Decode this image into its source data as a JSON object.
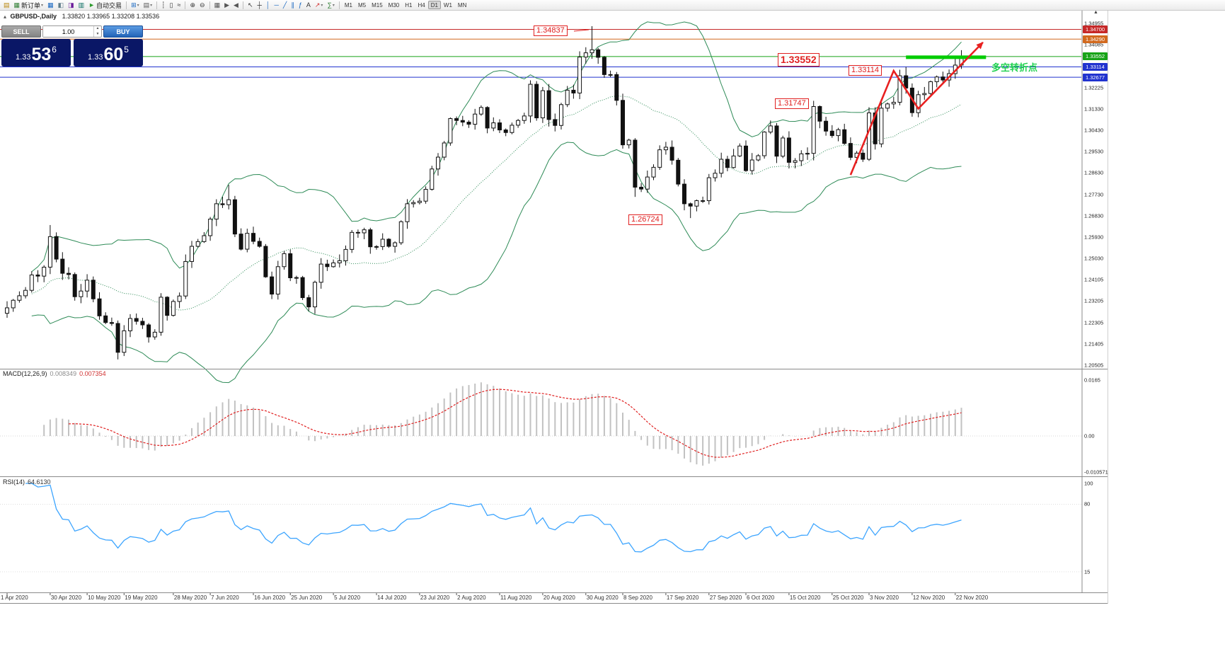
{
  "toolbar": {
    "groups": [
      {
        "type": "icons",
        "items": [
          {
            "name": "market-watch-icon",
            "glyph": "▤",
            "color": "#b8860b"
          },
          {
            "name": "new-order-button",
            "glyph": "▦",
            "color": "#2e7d32",
            "label": "新订单",
            "arrow": true
          },
          {
            "name": "charts-icon",
            "glyph": "▦",
            "color": "#1565c0"
          },
          {
            "name": "data-window-icon",
            "glyph": "◧",
            "color": "#607d8b"
          },
          {
            "name": "navigator-icon",
            "glyph": "◨",
            "color": "#6a1b9a"
          },
          {
            "name": "terminal-icon",
            "glyph": "▥",
            "color": "#00695c"
          },
          {
            "name": "autotrading-button",
            "glyph": "►",
            "color": "#2e9b2e",
            "label": "自动交易"
          }
        ]
      },
      {
        "type": "icons",
        "items": [
          {
            "name": "new-chart-icon",
            "glyph": "⊞",
            "color": "#1565c0",
            "arrow": true
          },
          {
            "name": "profiles-icon",
            "glyph": "▤",
            "color": "#555555",
            "arrow": true
          }
        ]
      },
      {
        "type": "icons",
        "items": [
          {
            "name": "bar-chart-type-icon",
            "glyph": "┆",
            "color": "#333333"
          },
          {
            "name": "candlestick-type-icon",
            "glyph": "▯",
            "color": "#333333"
          },
          {
            "name": "line-chart-type-icon",
            "glyph": "≈",
            "color": "#333333"
          }
        ]
      },
      {
        "type": "icons",
        "items": [
          {
            "name": "zoom-in-icon",
            "glyph": "⊕",
            "color": "#333333"
          },
          {
            "name": "zoom-out-icon",
            "glyph": "⊖",
            "color": "#333333"
          }
        ]
      },
      {
        "type": "icons",
        "items": [
          {
            "name": "tile-windows-icon",
            "glyph": "▦",
            "color": "#555555"
          },
          {
            "name": "auto-scroll-icon",
            "glyph": "▶",
            "color": "#555555"
          },
          {
            "name": "chart-shift-icon",
            "glyph": "◀",
            "color": "#555555"
          }
        ]
      },
      {
        "type": "icons",
        "items": [
          {
            "name": "cursor-icon",
            "glyph": "↖",
            "color": "#333333"
          },
          {
            "name": "crosshair-icon",
            "glyph": "┼",
            "color": "#333333"
          },
          {
            "name": "vertical-line-icon",
            "glyph": "│",
            "color": "#1565c0"
          },
          {
            "name": "horizontal-line-icon",
            "glyph": "─",
            "color": "#1565c0"
          },
          {
            "name": "trendline-icon",
            "glyph": "╱",
            "color": "#1565c0"
          },
          {
            "name": "channel-icon",
            "glyph": "∥",
            "color": "#1565c0"
          },
          {
            "name": "fibonacci-icon",
            "glyph": "ƒ",
            "color": "#1565c0"
          },
          {
            "name": "text-icon",
            "glyph": "A",
            "color": "#333333"
          },
          {
            "name": "arrows-icon",
            "glyph": "↗",
            "color": "#d32f2f",
            "arrow": true
          },
          {
            "name": "indicators-icon",
            "glyph": "∑",
            "color": "#2e7d32",
            "arrow": true
          }
        ]
      },
      {
        "type": "timeframes",
        "items": [
          {
            "name": "timeframe-m1",
            "label": "M1"
          },
          {
            "name": "timeframe-m5",
            "label": "M5"
          },
          {
            "name": "timeframe-m15",
            "label": "M15"
          },
          {
            "name": "timeframe-m30",
            "label": "M30"
          },
          {
            "name": "timeframe-h1",
            "label": "H1"
          },
          {
            "name": "timeframe-h4",
            "label": "H4"
          },
          {
            "name": "timeframe-d1",
            "label": "D1",
            "active": true
          },
          {
            "name": "timeframe-w1",
            "label": "W1"
          },
          {
            "name": "timeframe-mn",
            "label": "MN"
          }
        ]
      }
    ]
  },
  "icons": {
    "volume_up": "▲",
    "volume_down": "▼",
    "collapse": "▴",
    "scale_arrow": "▲"
  },
  "chart_header": {
    "symbol": "GBPUSD-,Daily",
    "ohlc": "1.33820 1.33965 1.33208 1.33536"
  },
  "trade_panel": {
    "sell_label": "SELL",
    "buy_label": "BUY",
    "volume": "1.00",
    "sell_price": {
      "prefix": "1.33",
      "big": "53",
      "sup": "6"
    },
    "buy_price": {
      "prefix": "1.33",
      "big": "60",
      "sup": "5"
    }
  },
  "indicators": {
    "macd_label": "MACD(12,26,9)",
    "macd_main": "0.008349",
    "macd_signal": "0.007354",
    "rsi_label": "RSI(14)",
    "rsi_value": "64.6130"
  },
  "axes": {
    "price_labels": [
      "1.34955",
      "1.34085",
      "1.33205",
      "1.32225",
      "1.31330",
      "1.30430",
      "1.29530",
      "1.28630",
      "1.27730",
      "1.26830",
      "1.25930",
      "1.25030",
      "1.24105",
      "1.23205",
      "1.22305",
      "1.21405",
      "1.20505"
    ],
    "price_tags": [
      {
        "text": "1.34700",
        "color": "#c62828"
      },
      {
        "text": "1.34290",
        "color": "#d2691e"
      },
      {
        "text": "1.33552",
        "color": "#17a317"
      },
      {
        "text": "1.33114",
        "color": "#2133cf"
      },
      {
        "text": "1.32677",
        "color": "#2133cf"
      }
    ],
    "macd_labels": [
      "0.0165",
      "0.00",
      "-0.010571"
    ],
    "rsi_labels": [
      "100",
      "80",
      "15"
    ]
  },
  "chart_data": {
    "type": "candlestick",
    "symbol": "GBPUSD",
    "timeframe": "Daily",
    "current_bar": {
      "open": 1.3382,
      "high": 1.33965,
      "low": 1.33208,
      "close": 1.33536
    },
    "price_range": {
      "top": 1.34955,
      "bottom": 1.20505
    },
    "candles": {
      "first_open": 1.227,
      "closes": [
        1.2293,
        1.2325,
        1.2344,
        1.2367,
        1.2432,
        1.2427,
        1.2465,
        1.2594,
        1.2499,
        1.2439,
        1.2434,
        1.234,
        1.2364,
        1.241,
        1.2331,
        1.2259,
        1.2231,
        1.2227,
        1.2105,
        1.2196,
        1.2248,
        1.2236,
        1.2221,
        1.217,
        1.219,
        1.2338,
        1.2261,
        1.232,
        1.2343,
        1.2489,
        1.2553,
        1.2573,
        1.2598,
        1.2668,
        1.2733,
        1.2729,
        1.275,
        1.2605,
        1.2541,
        1.2608,
        1.2574,
        1.2553,
        1.2424,
        1.2351,
        1.2467,
        1.2522,
        1.242,
        1.2421,
        1.2336,
        1.2297,
        1.2401,
        1.2478,
        1.2467,
        1.2483,
        1.2492,
        1.254,
        1.2612,
        1.261,
        1.2623,
        1.2551,
        1.2552,
        1.2583,
        1.2553,
        1.2568,
        1.2657,
        1.2733,
        1.2738,
        1.2744,
        1.2794,
        1.288,
        1.293,
        1.299,
        1.3093,
        1.3085,
        1.3078,
        1.3069,
        1.3112,
        1.314,
        1.3053,
        1.3075,
        1.3045,
        1.3034,
        1.3065,
        1.3085,
        1.3104,
        1.3238,
        1.3096,
        1.3211,
        1.3089,
        1.3064,
        1.3152,
        1.3213,
        1.3201,
        1.3353,
        1.3371,
        1.3384,
        1.3352,
        1.3279,
        1.3279,
        1.317,
        1.2982,
        1.3002,
        1.2803,
        1.2795,
        1.2846,
        1.2887,
        1.2961,
        1.2972,
        1.2917,
        1.2816,
        1.2733,
        1.2723,
        1.2746,
        1.2746,
        1.2843,
        1.2862,
        1.2921,
        1.2886,
        1.2935,
        1.2977,
        1.2873,
        1.2918,
        1.2936,
        1.3036,
        1.3062,
        1.2934,
        1.3011,
        1.2908,
        1.2915,
        1.2944,
        1.2946,
        1.3144,
        1.3082,
        1.304,
        1.3021,
        1.3046,
        1.2988,
        1.2929,
        1.2947,
        1.2921,
        1.3117,
        1.2986,
        1.3137,
        1.3155,
        1.3162,
        1.3274,
        1.3222,
        1.3118,
        1.3194,
        1.3199,
        1.3249,
        1.3269,
        1.3256,
        1.3283,
        1.3319,
        1.33536
      ],
      "extremes": [
        {
          "i": 7,
          "high": 1.2643
        },
        {
          "i": 18,
          "low": 1.2075
        },
        {
          "i": 36,
          "high": 1.2813
        },
        {
          "i": 95,
          "high": 1.34837
        },
        {
          "i": 102,
          "low": 1.2762
        },
        {
          "i": 111,
          "low": 1.26724
        },
        {
          "i": 140,
          "high": 1.3139
        },
        {
          "i": 146,
          "high": 1.33114
        }
      ]
    },
    "overlays": {
      "bollinger": {
        "period": 20,
        "deviation": 2,
        "color": "#2e8b57"
      },
      "horizontal_lines": [
        {
          "price": 1.347,
          "color": "#c62828"
        },
        {
          "price": 1.3429,
          "color": "#d2691e"
        },
        {
          "price": 1.33552,
          "color": "#17a317"
        },
        {
          "price": 1.33114,
          "color": "#2133cf"
        },
        {
          "price": 1.32677,
          "color": "#2133cf"
        }
      ],
      "thick_support_line": {
        "price": 1.33552,
        "from_bar": 146,
        "to_bar": 159,
        "color": "#00cc00"
      },
      "trend_arrow": {
        "color": "#e82020",
        "points_bars": [
          [
            137,
            1.2855
          ],
          [
            144,
            1.3295
          ],
          [
            148,
            1.3135
          ],
          [
            158.5,
            1.3415
          ]
        ]
      }
    },
    "sub_indicators": {
      "macd": {
        "label": "MACD(12,26,9)",
        "fast": 12,
        "slow": 26,
        "signal": 9,
        "current_main": 0.008349,
        "current_signal": 0.007354,
        "axis": [
          0.0165,
          0.0,
          -0.010571
        ]
      },
      "rsi": {
        "label": "RSI(14)",
        "period": 14,
        "current": 64.613,
        "axis": [
          100,
          80,
          15
        ]
      }
    },
    "annotations": [
      {
        "text": "1.34837",
        "price": 1.34837,
        "bar": 95
      },
      {
        "text": "1.33552",
        "price": 1.33552
      },
      {
        "text": "1.33114",
        "price": 1.33114,
        "bar": 146
      },
      {
        "text": "1.31747",
        "price": 1.31747
      },
      {
        "text": "1.26724",
        "price": 1.26724,
        "bar": 111
      },
      {
        "text": "多空转折点",
        "color": "#1dd14d"
      }
    ],
    "date_axis": [
      {
        "text": "1 Apr 2020",
        "bar": 0
      },
      {
        "text": "30 Apr 2020",
        "bar": 7
      },
      {
        "text": "10 May 2020",
        "bar": 13
      },
      {
        "text": "19 May 2020",
        "bar": 19
      },
      {
        "text": "28 May 2020",
        "bar": 27
      },
      {
        "text": "7 Jun 2020",
        "bar": 33
      },
      {
        "text": "16 Jun 2020",
        "bar": 40
      },
      {
        "text": "25 Jun 2020",
        "bar": 46
      },
      {
        "text": "5 Jul 2020",
        "bar": 53
      },
      {
        "text": "14 Jul 2020",
        "bar": 60
      },
      {
        "text": "23 Jul 2020",
        "bar": 67
      },
      {
        "text": "2 Aug 2020",
        "bar": 73
      },
      {
        "text": "11 Aug 2020",
        "bar": 80
      },
      {
        "text": "20 Aug 2020",
        "bar": 87
      },
      {
        "text": "30 Aug 2020",
        "bar": 94
      },
      {
        "text": "8 Sep 2020",
        "bar": 100
      },
      {
        "text": "17 Sep 2020",
        "bar": 107
      },
      {
        "text": "27 Sep 2020",
        "bar": 114
      },
      {
        "text": "6 Oct 2020",
        "bar": 120
      },
      {
        "text": "15 Oct 2020",
        "bar": 127
      },
      {
        "text": "25 Oct 2020",
        "bar": 134
      },
      {
        "text": "3 Nov 2020",
        "bar": 140
      },
      {
        "text": "12 Nov 2020",
        "bar": 147
      },
      {
        "text": "22 Nov 2020",
        "bar": 154
      }
    ]
  }
}
